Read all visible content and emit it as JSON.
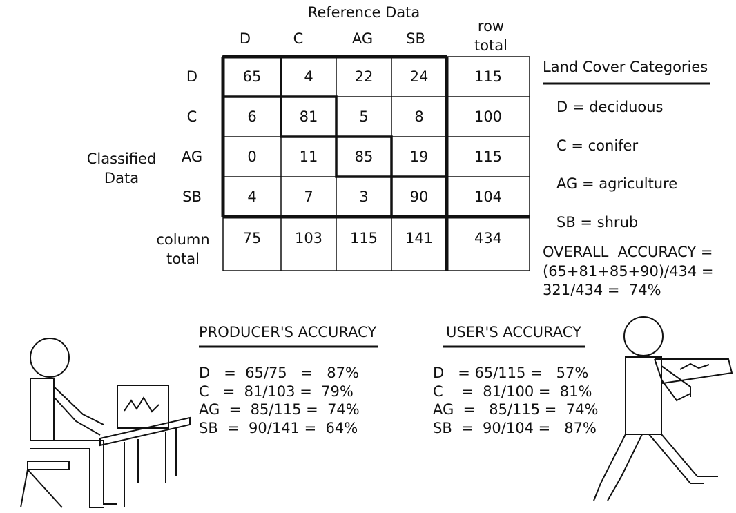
{
  "matrix": {
    "reference_label": "Reference Data",
    "row_total_label": "row total",
    "classified_label": "Classified Data",
    "column_total_label": "column total",
    "columns": [
      "D",
      "C",
      "AG",
      "SB"
    ],
    "rows": [
      {
        "label": "D",
        "values": [
          65,
          4,
          22,
          24
        ],
        "total": 115
      },
      {
        "label": "C",
        "values": [
          6,
          81,
          5,
          8
        ],
        "total": 100
      },
      {
        "label": "AG",
        "values": [
          0,
          11,
          85,
          19
        ],
        "total": 115
      },
      {
        "label": "SB",
        "values": [
          4,
          7,
          3,
          90
        ],
        "total": 104
      }
    ],
    "column_totals": [
      75,
      103,
      115,
      141
    ],
    "grand_total": 434
  },
  "legend": {
    "title": "Land Cover Categories",
    "items": [
      "D = deciduous",
      "C = conifer",
      "AG = agriculture",
      "SB = shrub"
    ]
  },
  "overall": {
    "lines": [
      "OVERALL  ACCURACY =",
      "(65+81+85+90)/434 =",
      "321/434 =  74%"
    ]
  },
  "producers": {
    "title": "PRODUCER'S ACCURACY",
    "lines": [
      "D   =  65/75   =   87%",
      "C   =  81/103 =  79%",
      "AG  =  85/115 =  74%",
      "SB  =  90/141 =  64%"
    ]
  },
  "users": {
    "title": "USER'S ACCURACY",
    "lines": [
      "D   = 65/115 =   57%",
      "C    =  81/100 =  81%",
      "AG  =   85/115 =  74%",
      "SB  =  90/104 =   87%"
    ]
  }
}
